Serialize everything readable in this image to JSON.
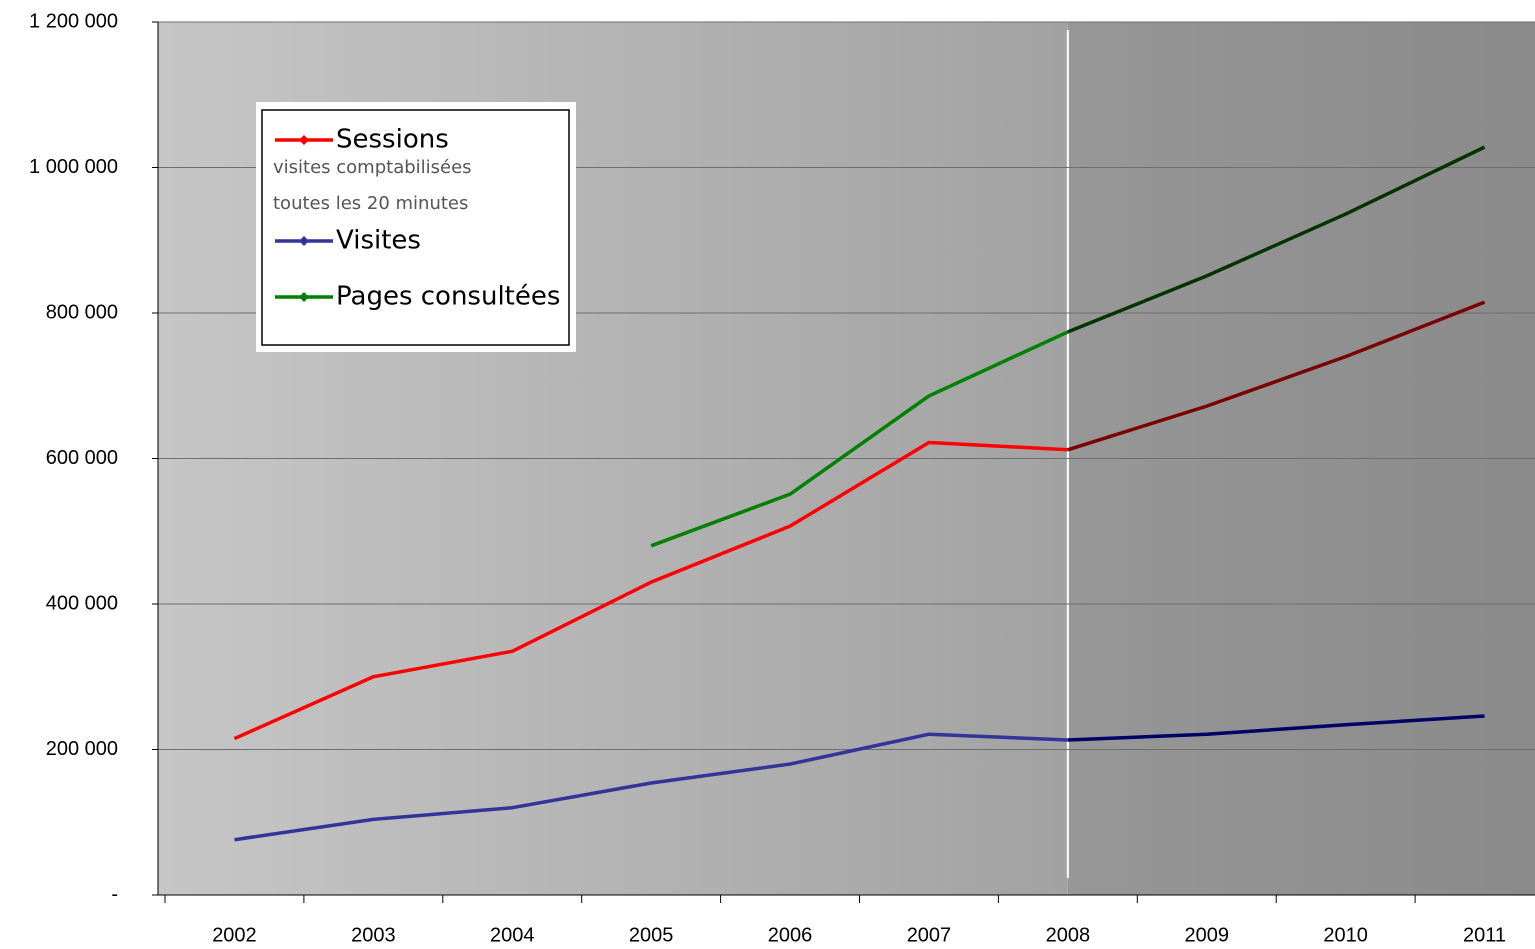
{
  "chart_data": {
    "type": "line",
    "categories": [
      "2002",
      "2003",
      "2004",
      "2005",
      "2006",
      "2007",
      "2008",
      "2009",
      "2010",
      "2011"
    ],
    "split_at": "2008",
    "series": [
      {
        "name": "Sessions",
        "legend_note": [
          "visites comptabilisées",
          "toutes les 20 minutes"
        ],
        "color": "#ff0000",
        "projection_color": "#7a0000",
        "values": [
          215000,
          300000,
          335000,
          430000,
          507000,
          622000,
          612000,
          672000,
          740000,
          815000
        ]
      },
      {
        "name": "Visites",
        "color": "#333399",
        "projection_color": "#000066",
        "values": [
          76000,
          104000,
          120000,
          154000,
          180000,
          221000,
          213000,
          221000,
          234000,
          246000
        ]
      },
      {
        "name": "Pages consultées",
        "color": "#008000",
        "projection_color": "#003300",
        "values": [
          null,
          null,
          null,
          480000,
          551000,
          686000,
          774000,
          851000,
          936000,
          1028000
        ]
      }
    ],
    "ylim": [
      0,
      1200000
    ],
    "yticks": [
      {
        "value": 0,
        "label": "-"
      },
      {
        "value": 200000,
        "label": "200 000"
      },
      {
        "value": 400000,
        "label": "400 000"
      },
      {
        "value": 600000,
        "label": "600 000"
      },
      {
        "value": 800000,
        "label": "800 000"
      },
      {
        "value": 1000000,
        "label": "1 000 000"
      },
      {
        "value": 1200000,
        "label": "1 200 000"
      }
    ],
    "grid": true
  }
}
